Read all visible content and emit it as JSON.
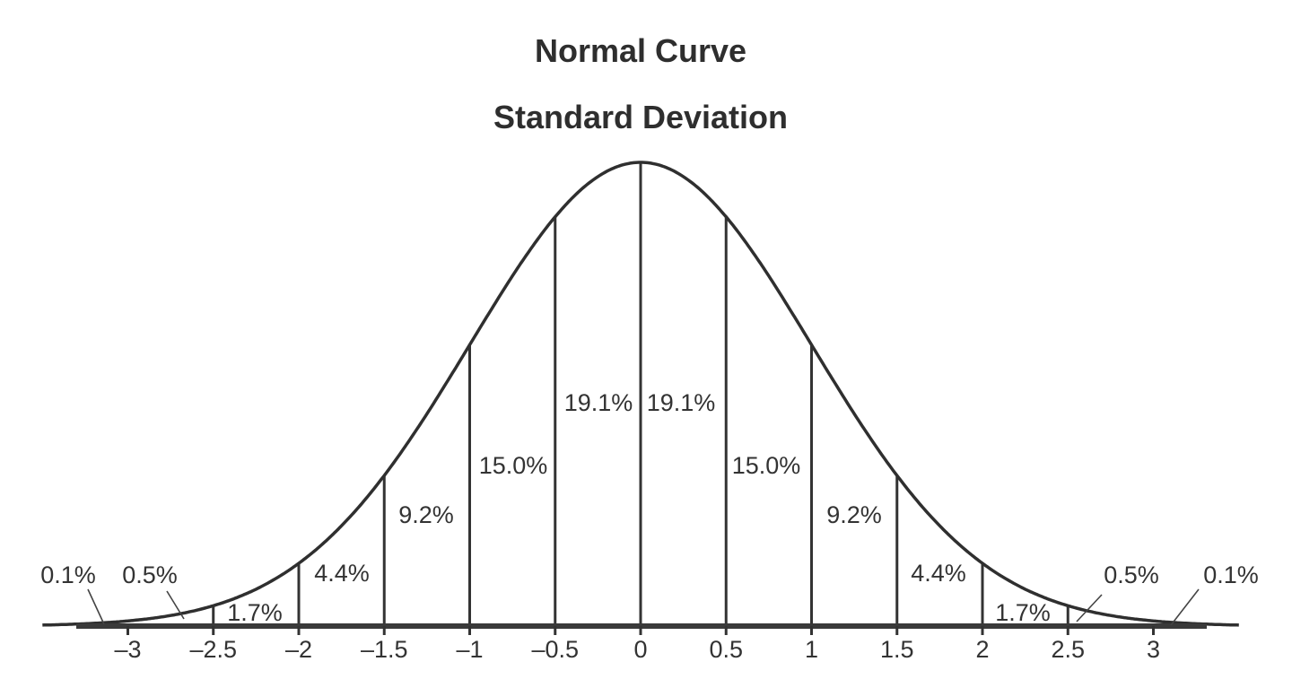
{
  "title": "Normal Curve",
  "subtitle": "Standard Deviation",
  "chart_data": {
    "type": "area",
    "title": "Normal Curve",
    "subtitle": "Standard Deviation",
    "xlabel": "",
    "ylabel": "",
    "xlim": [
      -3.5,
      3.5
    ],
    "grid": false,
    "x_ticks": [
      -3,
      -2.5,
      -2,
      -1.5,
      -1,
      -0.5,
      0,
      0.5,
      1,
      1.5,
      2,
      2.5,
      3
    ],
    "x_tick_labels": [
      "–3",
      "–2.5",
      "–2",
      "–1.5",
      "–1",
      "–0.5",
      "0",
      "0.5",
      "1",
      "1.5",
      "2",
      "2.5",
      "3"
    ],
    "dividers": [
      -2.5,
      -2,
      -1.5,
      -1,
      -0.5,
      0,
      0.5,
      1,
      1.5,
      2,
      2.5
    ],
    "segments": [
      {
        "from": -3.5,
        "to": -3,
        "label": "0.1%",
        "value": 0.1
      },
      {
        "from": -3,
        "to": -2.5,
        "label": "0.5%",
        "value": 0.5
      },
      {
        "from": -2.5,
        "to": -2,
        "label": "1.7%",
        "value": 1.7
      },
      {
        "from": -2,
        "to": -1.5,
        "label": "4.4%",
        "value": 4.4
      },
      {
        "from": -1.5,
        "to": -1,
        "label": "9.2%",
        "value": 9.2
      },
      {
        "from": -1,
        "to": -0.5,
        "label": "15.0%",
        "value": 15.0
      },
      {
        "from": -0.5,
        "to": 0,
        "label": "19.1%",
        "value": 19.1
      },
      {
        "from": 0,
        "to": 0.5,
        "label": "19.1%",
        "value": 19.1
      },
      {
        "from": 0.5,
        "to": 1,
        "label": "15.0%",
        "value": 15.0
      },
      {
        "from": 1,
        "to": 1.5,
        "label": "9.2%",
        "value": 9.2
      },
      {
        "from": 1.5,
        "to": 2,
        "label": "4.4%",
        "value": 4.4
      },
      {
        "from": 2,
        "to": 2.5,
        "label": "1.7%",
        "value": 1.7
      },
      {
        "from": 2.5,
        "to": 3,
        "label": "0.5%",
        "value": 0.5
      },
      {
        "from": 3,
        "to": 3.5,
        "label": "0.1%",
        "value": 0.1
      }
    ]
  }
}
